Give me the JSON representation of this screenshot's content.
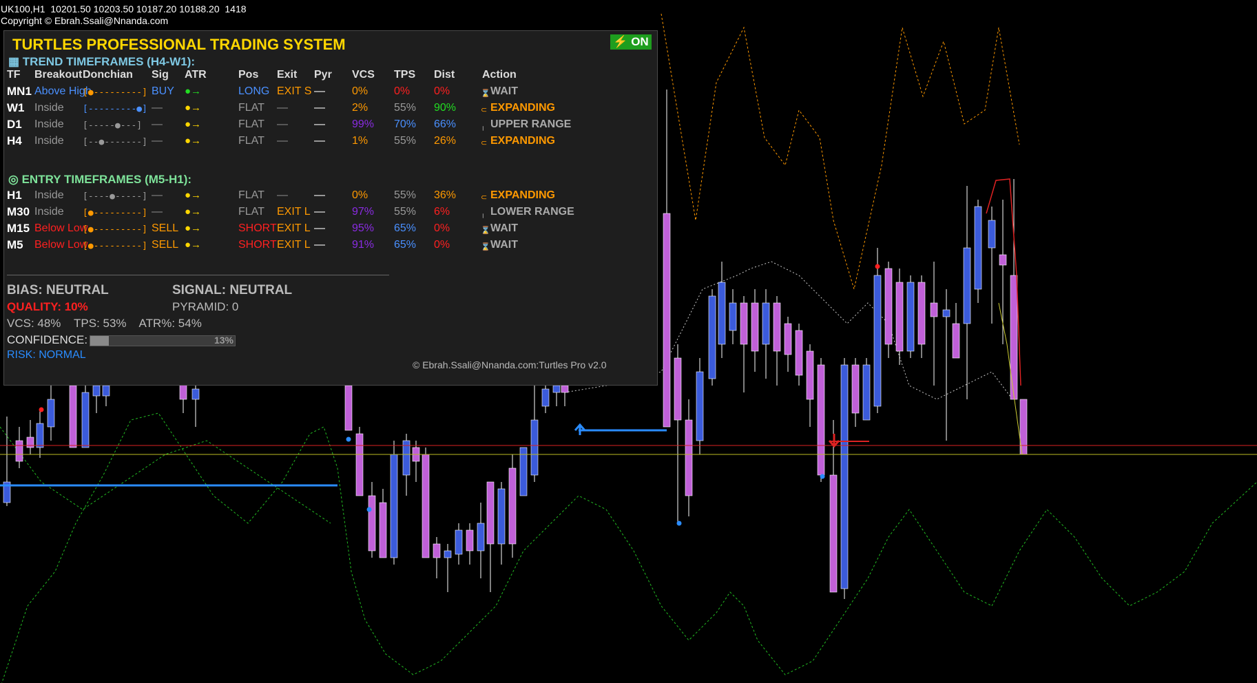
{
  "header": {
    "line1": "UK100,H1  10201.50 10203.50 10187.20 10188.20  1418",
    "line2": "Copyright © Ebrah.Ssali@Nnanda.com"
  },
  "panel": {
    "title": "TURTLES PROFESSIONAL TRADING SYSTEM",
    "status": "ON",
    "status_icon": "lightning-icon",
    "trend_title": "TREND TIMEFRAMES (H4-W1):",
    "entry_title": "ENTRY TIMEFRAMES (M5-H1):",
    "columns": [
      "TF",
      "Breakout",
      "Donchian",
      "Sig",
      "ATR",
      "Pos",
      "Exit",
      "Pyr",
      "VCS",
      "TPS",
      "Dist",
      "Action"
    ],
    "trend_rows": [
      {
        "tf": "MN1",
        "breakout": "Above High",
        "don": "[●---------]",
        "sig": "BUY",
        "atr": "●→",
        "pos": "LONG",
        "exit": "EXIT S",
        "pyr": "—",
        "vcs": "0%",
        "tps": "0%",
        "dist": "0%",
        "action": "WAIT",
        "c": {
          "breakout": "#4a90ff",
          "don": "#ff9900",
          "sig": "#4a90ff",
          "atr": "#22dd22",
          "pos": "#4a90ff",
          "exit": "#ff9900",
          "vcs": "#ff9900",
          "tps": "#ff2020",
          "dist": "#ff2020",
          "action": "#aaaaaa",
          "icon": "#aaaaaa"
        }
      },
      {
        "tf": "W1",
        "breakout": "Inside",
        "don": "[---------●]",
        "sig": "—",
        "atr": "●→",
        "pos": "FLAT",
        "exit": "—",
        "pyr": "—",
        "vcs": "2%",
        "tps": "55%",
        "dist": "90%",
        "action": "EXPANDING",
        "c": {
          "breakout": "#999999",
          "don": "#4a90ff",
          "sig": "#888888",
          "atr": "#ffd700",
          "pos": "#999999",
          "exit": "#888888",
          "vcs": "#ff9900",
          "tps": "#999999",
          "dist": "#22dd22",
          "action": "#ff9900",
          "icon": "#ff9900"
        }
      },
      {
        "tf": "D1",
        "breakout": "Inside",
        "don": "[-----●---]",
        "sig": "—",
        "atr": "●→",
        "pos": "FLAT",
        "exit": "—",
        "pyr": "—",
        "vcs": "99%",
        "tps": "70%",
        "dist": "66%",
        "action": "UPPER RANGE",
        "c": {
          "breakout": "#999999",
          "don": "#999999",
          "sig": "#888888",
          "atr": "#ffd700",
          "pos": "#999999",
          "exit": "#888888",
          "vcs": "#8a2be2",
          "tps": "#4a90ff",
          "dist": "#4a90ff",
          "action": "#aaaaaa",
          "icon": "#aaaaaa"
        }
      },
      {
        "tf": "H4",
        "breakout": "Inside",
        "don": "[--●-------]",
        "sig": "—",
        "atr": "●→",
        "pos": "FLAT",
        "exit": "—",
        "pyr": "—",
        "vcs": "1%",
        "tps": "55%",
        "dist": "26%",
        "action": "EXPANDING",
        "c": {
          "breakout": "#999999",
          "don": "#999999",
          "sig": "#888888",
          "atr": "#ffd700",
          "pos": "#999999",
          "exit": "#888888",
          "vcs": "#ff9900",
          "tps": "#999999",
          "dist": "#ff9900",
          "action": "#ff9900",
          "icon": "#ff9900"
        }
      }
    ],
    "entry_rows": [
      {
        "tf": "H1",
        "breakout": "Inside",
        "don": "[----●-----]",
        "sig": "—",
        "atr": "●→",
        "pos": "FLAT",
        "exit": "—",
        "pyr": "—",
        "vcs": "0%",
        "tps": "55%",
        "dist": "36%",
        "action": "EXPANDING",
        "c": {
          "breakout": "#999999",
          "don": "#999999",
          "sig": "#888888",
          "atr": "#ffd700",
          "pos": "#999999",
          "exit": "#888888",
          "vcs": "#ff9900",
          "tps": "#999999",
          "dist": "#ff9900",
          "action": "#ff9900",
          "icon": "#ff9900"
        }
      },
      {
        "tf": "M30",
        "breakout": "Inside",
        "don": "[●---------]",
        "sig": "—",
        "atr": "●→",
        "pos": "FLAT",
        "exit": "EXIT L",
        "pyr": "—",
        "vcs": "97%",
        "tps": "55%",
        "dist": "6%",
        "action": "LOWER RANGE",
        "c": {
          "breakout": "#999999",
          "don": "#ff9900",
          "sig": "#888888",
          "atr": "#ffd700",
          "pos": "#999999",
          "exit": "#ff9900",
          "vcs": "#8a2be2",
          "tps": "#999999",
          "dist": "#ff2020",
          "action": "#aaaaaa",
          "icon": "#aaaaaa"
        }
      },
      {
        "tf": "M15",
        "breakout": "Below Low",
        "don": "[●---------]",
        "sig": "SELL",
        "atr": "●→",
        "pos": "SHORT",
        "exit": "EXIT L",
        "pyr": "—",
        "vcs": "95%",
        "tps": "65%",
        "dist": "0%",
        "action": "WAIT",
        "c": {
          "breakout": "#ff2020",
          "don": "#ff9900",
          "sig": "#ff9900",
          "atr": "#ffd700",
          "pos": "#ff2020",
          "exit": "#ff9900",
          "vcs": "#8a2be2",
          "tps": "#4a90ff",
          "dist": "#ff2020",
          "action": "#aaaaaa",
          "icon": "#aaaaaa"
        }
      },
      {
        "tf": "M5",
        "breakout": "Below Low",
        "don": "[●---------]",
        "sig": "SELL",
        "atr": "●→",
        "pos": "SHORT",
        "exit": "EXIT L",
        "pyr": "—",
        "vcs": "91%",
        "tps": "65%",
        "dist": "0%",
        "action": "WAIT",
        "c": {
          "breakout": "#ff2020",
          "don": "#ff9900",
          "sig": "#ff9900",
          "atr": "#ffd700",
          "pos": "#ff2020",
          "exit": "#ff9900",
          "vcs": "#8a2be2",
          "tps": "#4a90ff",
          "dist": "#ff2020",
          "action": "#aaaaaa",
          "icon": "#aaaaaa"
        }
      }
    ],
    "bias": "BIAS: NEUTRAL",
    "signal": "SIGNAL: NEUTRAL",
    "quality": "QUALITY: 10%",
    "pyramid": "PYRAMID: 0",
    "stats": "VCS: 48%    TPS: 53%    ATR%: 54%",
    "confidence_label": "CONFIDENCE:",
    "confidence_text": "13%",
    "confidence_fraction": 0.13,
    "risk": "RISK: NORMAL",
    "copyright": "© Ebrah.Ssali@Nnanda.com:Turtles Pro v2.0"
  },
  "chart_data": {
    "type": "candlestick",
    "symbol": "UK100",
    "timeframe": "H1",
    "quote": {
      "open": 10201.5,
      "high": 10203.5,
      "low": 10187.2,
      "close": 10188.2,
      "volume": 1418
    },
    "colors": {
      "up": "#3b5bdb",
      "down": "#c060d8",
      "upper_band": "#ff9900",
      "lower_band": "#22bb22",
      "middle": "#cccccc",
      "red_line": "#dd2222",
      "yellow_line": "#bbbb22",
      "blue_line": "#2a8cff"
    }
  }
}
